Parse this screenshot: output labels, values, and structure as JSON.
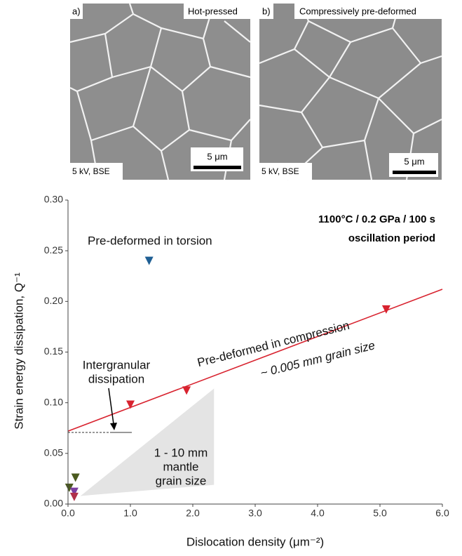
{
  "micrographs": [
    {
      "panel": "a)",
      "label": "Hot-pressed",
      "scale": "5 μm",
      "conditions": "5 kV, BSE"
    },
    {
      "panel": "b)",
      "label": "Compressively pre-deformed",
      "scale": "5 μm",
      "conditions": "5 kV, BSE"
    }
  ],
  "chart_data": {
    "type": "scatter",
    "x_label": "Dislocation density (μm⁻²)",
    "y_label": "Strain energy dissipation, Q⁻¹",
    "xlim": [
      0,
      6
    ],
    "ylim": [
      0,
      0.3
    ],
    "xticks": [
      {
        "value": 0,
        "label": "0.0"
      },
      {
        "value": 1,
        "label": "1.0"
      },
      {
        "value": 2,
        "label": "2.0"
      },
      {
        "value": 3,
        "label": "3.0"
      },
      {
        "value": 4,
        "label": "4.0"
      },
      {
        "value": 5,
        "label": "5.0"
      },
      {
        "value": 6,
        "label": "6.0"
      }
    ],
    "yticks": [
      {
        "value": 0,
        "label": "0.00"
      },
      {
        "value": 0.05,
        "label": "0.05"
      },
      {
        "value": 0.1,
        "label": "0.10"
      },
      {
        "value": 0.15,
        "label": "0.15"
      },
      {
        "value": 0.2,
        "label": "0.20"
      },
      {
        "value": 0.25,
        "label": "0.25"
      },
      {
        "value": 0.3,
        "label": "0.30"
      }
    ],
    "series": [
      {
        "color": "#1f5f94",
        "x": [
          1.3
        ],
        "values": [
          0.24
        ]
      },
      {
        "color": "#d8232f",
        "x": [
          1.0,
          1.9,
          5.1
        ],
        "values": [
          0.098,
          0.112,
          0.192
        ]
      },
      {
        "color": "#4b5a1f",
        "x": [
          0.02,
          0.12
        ],
        "values": [
          0.016,
          0.026
        ]
      },
      {
        "color": "#7b3fa0",
        "x": [
          0.1
        ],
        "values": [
          0.012
        ]
      },
      {
        "color": "#b0304a",
        "x": [
          0.1
        ],
        "values": [
          0.007
        ]
      }
    ],
    "fit_line": {
      "color": "#d8232f",
      "x": [
        0,
        6
      ],
      "values": [
        0.072,
        0.212
      ]
    },
    "shaded_region": {
      "color": "#e4e4e4",
      "x": [
        0.2,
        2.34,
        2.34
      ],
      "values": [
        0.008,
        0.114,
        0.019
      ]
    },
    "annotations": [
      "1100°C / 0.2 GPa / 100 s",
      "oscillation period",
      "Pre-deformed in torsion",
      "Pre-deformed in compression",
      "~ 0.005 mm grain size",
      "Intergranular",
      "dissipation",
      "1 - 10 mm",
      "mantle",
      "grain size"
    ]
  }
}
